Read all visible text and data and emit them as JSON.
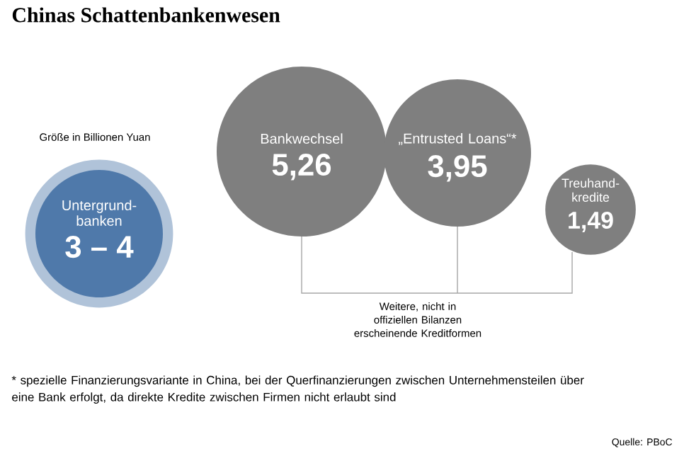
{
  "chart_data": {
    "type": "other",
    "title": "Chinas Schattenbankenwesen",
    "subtitle": "Größe in Billionen Yuan",
    "categories": [
      "Untergrund- banken",
      "Bankwechsel",
      "„Entrusted Loans“*",
      "Treuhand- kredite"
    ],
    "values": [
      null,
      5.26,
      3.95,
      1.49
    ],
    "value_labels": [
      "3 – 4",
      "5,26",
      "3,95",
      "1,49"
    ],
    "colors": [
      "#4f79aa",
      "#7f7f7f",
      "#7f7f7f",
      "#7f7f7f"
    ],
    "annotations": [
      "Weitere, nicht in offiziellen Bilanzen erscheinende Kreditformen",
      "* spezielle Finanzierungsvariante in China, bei der Querfinanzierungen zwischen Unternehmensteilen über eine Bank erfolgt, da direkte Kredite zwischen Firmen nicht erlaubt sind",
      "Quelle: PBoC"
    ]
  }
}
